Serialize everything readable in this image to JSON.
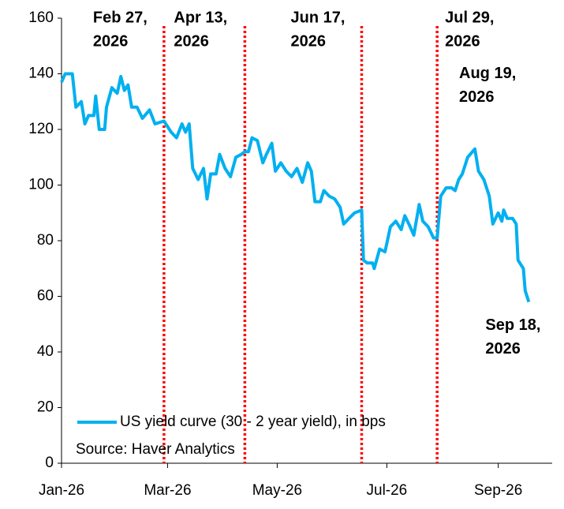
{
  "chart_data": {
    "type": "line",
    "legend": "bottom-left",
    "source": "Source: Haver Analytics",
    "xlim": [
      "2026-01-01",
      "2026-10-01"
    ],
    "xticks": [
      {
        "value": "2026-01-01",
        "label": "Jan-26"
      },
      {
        "value": "2026-03-01",
        "label": "Mar-26"
      },
      {
        "value": "2026-05-01",
        "label": "May-26"
      },
      {
        "value": "2026-07-01",
        "label": "Jul-26"
      },
      {
        "value": "2026-09-01",
        "label": "Sep-26"
      }
    ],
    "ylim": [
      0,
      160
    ],
    "yticks": [
      0,
      20,
      40,
      60,
      80,
      100,
      120,
      140,
      160
    ],
    "vlines": [
      {
        "x": "2026-02-27",
        "lines": [
          "Feb 27,",
          "2026"
        ],
        "color": "#ff0000"
      },
      {
        "x": "2026-04-13",
        "lines": [
          "Apr 13,",
          "2026"
        ],
        "color": "#ff0000"
      },
      {
        "x": "2026-06-17",
        "lines": [
          "Jun 17,",
          "2026"
        ],
        "color": "#ff0000"
      },
      {
        "x": "2026-07-29",
        "lines": [
          "Jul 29,",
          "2026"
        ],
        "color": "#ff0000"
      }
    ],
    "callouts": [
      {
        "x": "2026-08-19",
        "lines": [
          "Aug 19,",
          "2026"
        ]
      },
      {
        "x": "2026-09-18",
        "lines": [
          "Sep 18,",
          "2026"
        ]
      }
    ],
    "x": [
      "2026-01-01",
      "2026-01-03",
      "2026-01-07",
      "2026-01-09",
      "2026-01-12",
      "2026-01-14",
      "2026-01-16",
      "2026-01-19",
      "2026-01-20",
      "2026-01-22",
      "2026-01-25",
      "2026-01-26",
      "2026-01-29",
      "2026-02-01",
      "2026-02-03",
      "2026-02-05",
      "2026-02-07",
      "2026-02-09",
      "2026-02-12",
      "2026-02-15",
      "2026-02-19",
      "2026-02-22",
      "2026-02-27",
      "2026-03-03",
      "2026-03-06",
      "2026-03-09",
      "2026-03-11",
      "2026-03-13",
      "2026-03-15",
      "2026-03-18",
      "2026-03-21",
      "2026-03-23",
      "2026-03-25",
      "2026-03-28",
      "2026-03-30",
      "2026-04-02",
      "2026-04-05",
      "2026-04-08",
      "2026-04-11",
      "2026-04-13",
      "2026-04-15",
      "2026-04-17",
      "2026-04-20",
      "2026-04-23",
      "2026-04-25",
      "2026-04-28",
      "2026-04-30",
      "2026-05-03",
      "2026-05-06",
      "2026-05-09",
      "2026-05-12",
      "2026-05-15",
      "2026-05-18",
      "2026-05-20",
      "2026-05-22",
      "2026-05-25",
      "2026-05-27",
      "2026-05-30",
      "2026-06-02",
      "2026-06-05",
      "2026-06-07",
      "2026-06-10",
      "2026-06-13",
      "2026-06-17",
      "2026-06-18",
      "2026-06-20",
      "2026-06-23",
      "2026-06-24",
      "2026-06-27",
      "2026-06-30",
      "2026-07-03",
      "2026-07-06",
      "2026-07-09",
      "2026-07-11",
      "2026-07-14",
      "2026-07-16",
      "2026-07-19",
      "2026-07-21",
      "2026-07-24",
      "2026-07-27",
      "2026-07-29",
      "2026-07-31",
      "2026-08-03",
      "2026-08-06",
      "2026-08-08",
      "2026-08-10",
      "2026-08-12",
      "2026-08-15",
      "2026-08-19",
      "2026-08-21",
      "2026-08-24",
      "2026-08-27",
      "2026-08-29",
      "2026-09-01",
      "2026-09-03",
      "2026-09-04",
      "2026-09-06",
      "2026-09-09",
      "2026-09-11",
      "2026-09-12",
      "2026-09-15",
      "2026-09-16",
      "2026-09-18"
    ],
    "series": [
      {
        "name": "US yield curve (30 - 2 year yield), in bps",
        "color": "#00b0f0",
        "values": [
          137,
          140,
          140,
          128,
          130,
          122,
          125,
          125,
          132,
          120,
          120,
          128,
          135,
          133,
          139,
          134,
          136,
          128,
          128,
          124,
          127,
          122,
          123,
          119,
          117,
          122,
          119,
          122,
          106,
          102,
          106,
          95,
          104,
          104,
          111,
          106,
          103,
          110,
          111,
          112,
          112,
          117,
          116,
          108,
          111,
          115,
          105,
          108,
          105,
          103,
          106,
          101,
          108,
          105,
          94,
          94,
          98,
          96,
          95,
          92,
          86,
          88,
          90,
          91,
          73,
          72,
          72,
          70,
          77,
          76,
          85,
          87,
          84,
          89,
          85,
          82,
          93,
          87,
          85,
          81,
          81,
          96,
          99,
          99,
          98,
          102,
          104,
          110,
          113,
          105,
          102,
          96,
          86,
          90,
          87,
          91,
          88,
          88,
          86,
          73,
          70,
          62,
          58
        ]
      }
    ]
  }
}
